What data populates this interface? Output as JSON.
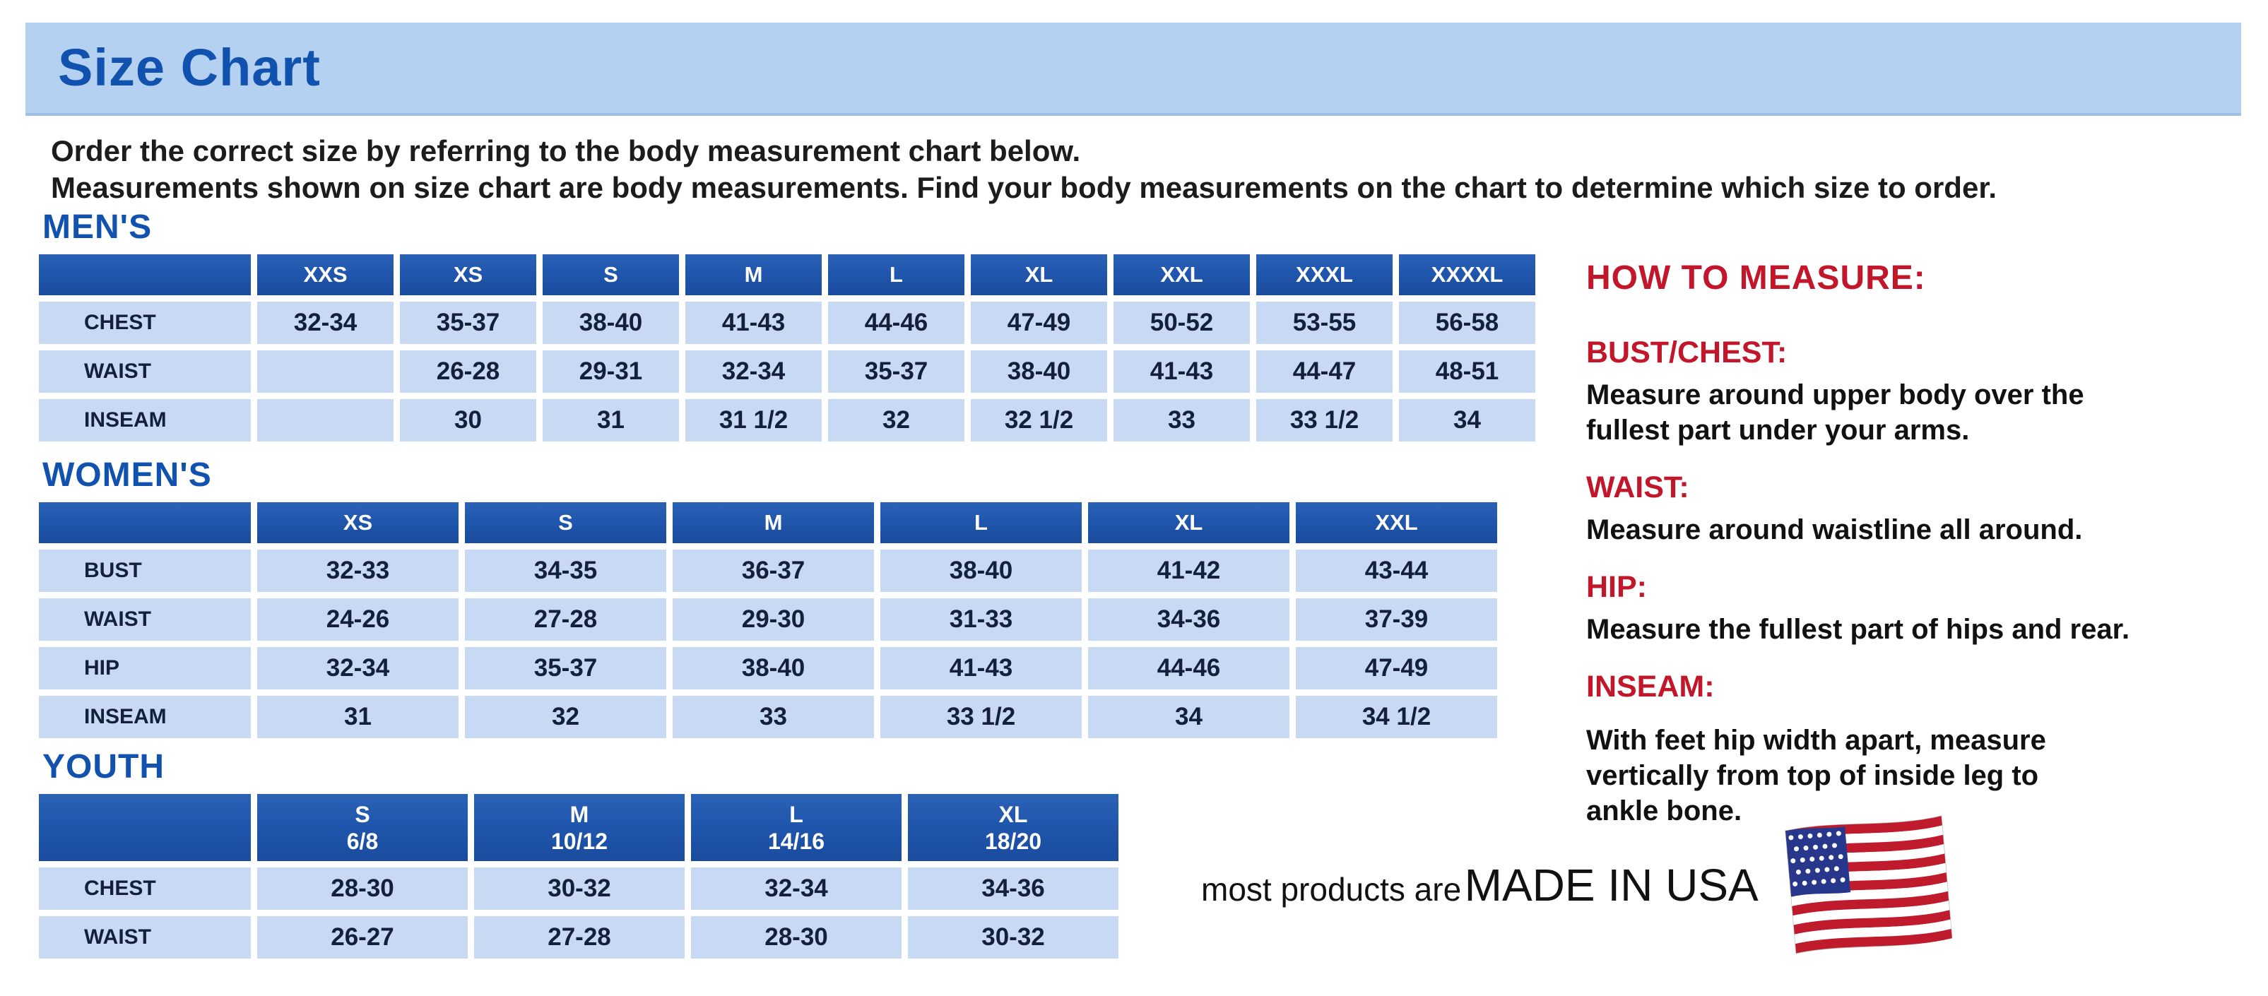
{
  "page": {
    "title": "Size Chart",
    "intro": {
      "lines": [
        "Order the correct size by referring to the body measurement chart below.",
        "Measurements shown on size chart are body measurements.  Find your body measurements on the chart to determine which size to order."
      ]
    }
  },
  "tables": {
    "mens": {
      "heading": "MEN'S",
      "columns": [
        "XXS",
        "XS",
        "S",
        "M",
        "L",
        "XL",
        "XXL",
        "XXXL",
        "XXXXL"
      ],
      "rows": [
        {
          "label": "CHEST",
          "values": [
            "32-34",
            "35-37",
            "38-40",
            "41-43",
            "44-46",
            "47-49",
            "50-52",
            "53-55",
            "56-58"
          ]
        },
        {
          "label": "WAIST",
          "values": [
            "",
            "26-28",
            "29-31",
            "32-34",
            "35-37",
            "38-40",
            "41-43",
            "44-47",
            "48-51"
          ]
        },
        {
          "label": "INSEAM",
          "values": [
            "",
            "30",
            "31",
            "31 1/2",
            "32",
            "32 1/2",
            "33",
            "33 1/2",
            "34"
          ]
        }
      ]
    },
    "womens": {
      "heading": "WOMEN'S",
      "columns": [
        "XS",
        "S",
        "M",
        "L",
        "XL",
        "XXL"
      ],
      "rows": [
        {
          "label": "BUST",
          "values": [
            "32-33",
            "34-35",
            "36-37",
            "38-40",
            "41-42",
            "43-44"
          ]
        },
        {
          "label": "WAIST",
          "values": [
            "24-26",
            "27-28",
            "29-30",
            "31-33",
            "34-36",
            "37-39"
          ]
        },
        {
          "label": "HIP",
          "values": [
            "32-34",
            "35-37",
            "38-40",
            "41-43",
            "44-46",
            "47-49"
          ]
        },
        {
          "label": "INSEAM",
          "values": [
            "31",
            "32",
            "33",
            "33 1/2",
            "34",
            "34 1/2"
          ]
        }
      ]
    },
    "youth": {
      "heading": "YOUTH",
      "columns": [
        "S\n6/8",
        "M\n10/12",
        "L\n14/16",
        "XL\n18/20"
      ],
      "rows": [
        {
          "label": "CHEST",
          "values": [
            "28-30",
            "30-32",
            "32-34",
            "34-36"
          ]
        },
        {
          "label": "WAIST",
          "values": [
            "26-27",
            "27-28",
            "28-30",
            "30-32"
          ]
        }
      ]
    }
  },
  "how_to_measure": {
    "heading": "HOW TO MEASURE:",
    "sections": [
      {
        "id": "bust-chest",
        "label": "BUST/CHEST:",
        "text": "Measure around upper body over the\nfullest part under your arms."
      },
      {
        "id": "waist",
        "label": "WAIST:",
        "text": "Measure around waistline all around."
      },
      {
        "id": "hip",
        "label": "HIP:",
        "text": "Measure the fullest part of hips and rear."
      },
      {
        "id": "inseam",
        "label": "INSEAM:",
        "text": "With feet hip width apart, measure\nvertically from top of inside leg to\nankle bone."
      }
    ]
  },
  "footer": {
    "prefix": "most products are",
    "made_in": "MADE IN USA",
    "flag_icon": "usa-flag"
  },
  "colors": {
    "brand-blue": "#1252af",
    "header-blue": "#2056ad",
    "cell-blue": "#c8daf3",
    "banner-blue": "#b4d1f1",
    "accent-red": "#c2172b",
    "text-dark": "#1c1c1c",
    "value-navy": "#14203a",
    "flag-red": "#bf1b2c",
    "flag-blue": "#27378c"
  }
}
